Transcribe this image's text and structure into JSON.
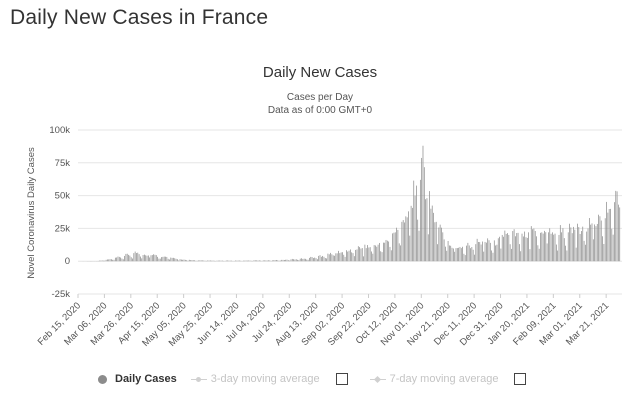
{
  "page": {
    "title": "Daily New Cases in France"
  },
  "legend": {
    "daily": "Daily Cases",
    "avg3": "3-day moving average",
    "avg7": "7-day moving average"
  },
  "chart_data": {
    "type": "bar",
    "title": "Daily New Cases",
    "subtitle_lines": [
      "Cases per Day",
      "Data as of 0:00 GMT+0"
    ],
    "xlabel": "",
    "ylabel": "Novel Coronavirus Daily Cases",
    "ylim": [
      -25000,
      100000
    ],
    "y_ticks": [
      -25000,
      0,
      25000,
      50000,
      75000,
      100000
    ],
    "y_tick_labels": [
      "-25k",
      "0",
      "25k",
      "50k",
      "75k",
      "100k"
    ],
    "x_tick_labels": [
      "Feb 15, 2020",
      "Mar 06, 2020",
      "Mar 26, 2020",
      "Apr 15, 2020",
      "May 05, 2020",
      "May 25, 2020",
      "Jun 14, 2020",
      "Jul 04, 2020",
      "Jul 24, 2020",
      "Aug 13, 2020",
      "Sep 02, 2020",
      "Sep 22, 2020",
      "Oct 12, 2020",
      "Nov 01, 2020",
      "Nov 21, 2020",
      "Dec 11, 2020",
      "Dec 31, 2020",
      "Jan 20, 2021",
      "Feb 09, 2021",
      "Mar 01, 2021",
      "Mar 21, 2021"
    ],
    "grid": true,
    "bar_color": "#8c8c8c",
    "series": [
      {
        "name": "Daily Cases",
        "x": [
          "Feb 15, 2020",
          "Mar 01, 2020",
          "Mar 11, 2020",
          "Mar 21, 2020",
          "Mar 31, 2020",
          "Apr 05, 2020",
          "Apr 10, 2020",
          "Apr 20, 2020",
          "Apr 30, 2020",
          "May 10, 2020",
          "May 20, 2020",
          "May 30, 2020",
          "Jun 09, 2020",
          "Jun 19, 2020",
          "Jun 29, 2020",
          "Jul 09, 2020",
          "Jul 19, 2020",
          "Jul 29, 2020",
          "Aug 08, 2020",
          "Aug 18, 2020",
          "Aug 28, 2020",
          "Sep 07, 2020",
          "Sep 17, 2020",
          "Sep 27, 2020",
          "Oct 07, 2020",
          "Oct 12, 2020",
          "Oct 17, 2020",
          "Oct 22, 2020",
          "Oct 27, 2020",
          "Oct 31, 2020",
          "Nov 02, 2020",
          "Nov 05, 2020",
          "Nov 08, 2020",
          "Nov 12, 2020",
          "Nov 17, 2020",
          "Nov 22, 2020",
          "Nov 27, 2020",
          "Dec 02, 2020",
          "Dec 07, 2020",
          "Dec 12, 2020",
          "Dec 17, 2020",
          "Dec 22, 2020",
          "Dec 27, 2020",
          "Jan 01, 2021",
          "Jan 06, 2021",
          "Jan 11, 2021",
          "Jan 16, 2021",
          "Jan 21, 2021",
          "Jan 26, 2021",
          "Jan 31, 2021",
          "Feb 05, 2021",
          "Feb 10, 2021",
          "Feb 15, 2021",
          "Feb 20, 2021",
          "Feb 25, 2021",
          "Mar 02, 2021",
          "Mar 07, 2021",
          "Mar 12, 2021",
          "Mar 17, 2021",
          "Mar 22, 2021",
          "Mar 27, 2021",
          "Mar 31, 2021"
        ],
        "values": [
          0,
          200,
          1500,
          4000,
          6500,
          5000,
          4500,
          3500,
          1500,
          800,
          500,
          400,
          400,
          400,
          600,
          600,
          1000,
          1500,
          2500,
          4000,
          6000,
          8000,
          10000,
          12000,
          15000,
          22000,
          30000,
          38000,
          50000,
          62000,
          88000,
          48000,
          40000,
          30000,
          22000,
          12000,
          10000,
          11000,
          12000,
          13000,
          15000,
          16000,
          12000,
          20000,
          20000,
          19000,
          21000,
          22000,
          23000,
          22000,
          22000,
          21000,
          22000,
          22000,
          24000,
          23000,
          25000,
          28000,
          31000,
          37000,
          45000,
          41000
        ]
      }
    ]
  }
}
